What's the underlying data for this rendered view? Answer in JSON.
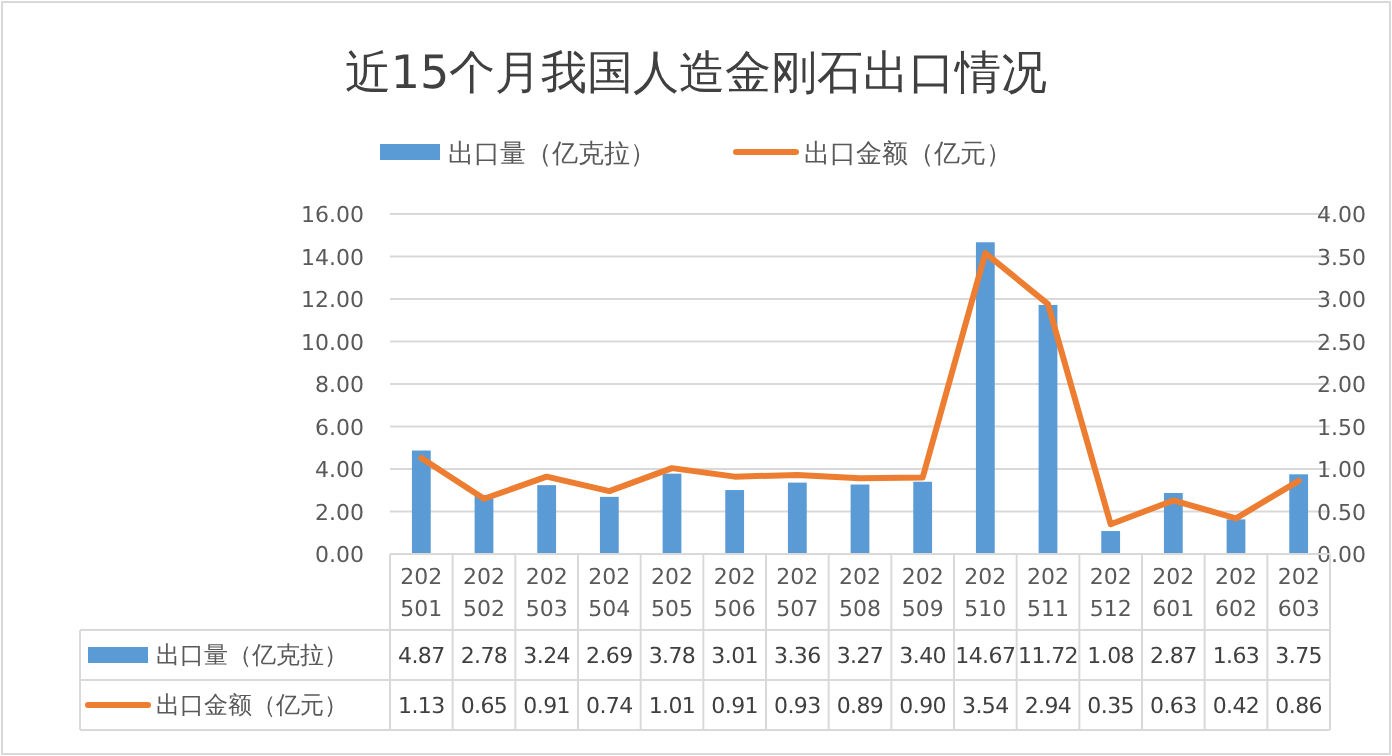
{
  "chart_data": {
    "type": "bar",
    "title": "近15个月我国人造金刚石出口情况",
    "categories": [
      "202501",
      "202502",
      "202503",
      "202504",
      "202505",
      "202506",
      "202507",
      "202508",
      "202509",
      "202510",
      "202511",
      "202512",
      "202601",
      "202602",
      "202603"
    ],
    "series": [
      {
        "name": "出口量（亿克拉）",
        "color": "#5b9bd5",
        "values": [
          4.87,
          2.78,
          3.24,
          2.69,
          3.78,
          3.01,
          3.36,
          3.27,
          3.4,
          14.67,
          11.72,
          1.08,
          2.87,
          1.63,
          3.75
        ],
        "value_labels": [
          "4.87",
          "2.78",
          "3.24",
          "2.69",
          "3.78",
          "3.01",
          "3.36",
          "3.27",
          "3.40",
          "14.67",
          "11.72",
          "1.08",
          "2.87",
          "1.63",
          "3.75"
        ]
      },
      {
        "name": "出口金额（亿元）",
        "type": "line",
        "axis": "y2",
        "color": "#ed7d31",
        "values": [
          1.13,
          0.65,
          0.91,
          0.74,
          1.01,
          0.91,
          0.93,
          0.89,
          0.9,
          3.54,
          2.94,
          0.35,
          0.63,
          0.42,
          0.86
        ],
        "value_labels": [
          "1.13",
          "0.65",
          "0.91",
          "0.74",
          "1.01",
          "0.91",
          "0.93",
          "0.89",
          "0.90",
          "3.54",
          "2.94",
          "0.35",
          "0.63",
          "0.42",
          "0.86"
        ]
      }
    ],
    "ylim": [
      0,
      16
    ],
    "yticks": [
      {
        "value": 0,
        "label": "0.00"
      },
      {
        "value": 2,
        "label": "2.00"
      },
      {
        "value": 4,
        "label": "4.00"
      },
      {
        "value": 6,
        "label": "6.00"
      },
      {
        "value": 8,
        "label": "8.00"
      },
      {
        "value": 10,
        "label": "10.00"
      },
      {
        "value": 12,
        "label": "12.00"
      },
      {
        "value": 14,
        "label": "14.00"
      },
      {
        "value": 16,
        "label": "16.00"
      }
    ],
    "y2lim": [
      0,
      4
    ],
    "y2ticks": [
      {
        "value": 0,
        "label": "0.00"
      },
      {
        "value": 0.5,
        "label": "0.50"
      },
      {
        "value": 1,
        "label": "1.00"
      },
      {
        "value": 1.5,
        "label": "1.50"
      },
      {
        "value": 2,
        "label": "2.00"
      },
      {
        "value": 2.5,
        "label": "2.50"
      },
      {
        "value": 3,
        "label": "3.00"
      },
      {
        "value": 3.5,
        "label": "3.50"
      },
      {
        "value": 4,
        "label": "4.00"
      }
    ],
    "grid": "y",
    "legend": "top"
  }
}
